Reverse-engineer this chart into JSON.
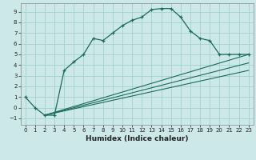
{
  "xlabel": "Humidex (Indice chaleur)",
  "bg_color": "#cce8e8",
  "grid_color": "#99cccc",
  "line_color": "#1a6b5a",
  "xlim": [
    -0.5,
    23.5
  ],
  "ylim": [
    -1.6,
    9.8
  ],
  "xticks": [
    0,
    1,
    2,
    3,
    4,
    5,
    6,
    7,
    8,
    9,
    10,
    11,
    12,
    13,
    14,
    15,
    16,
    17,
    18,
    19,
    20,
    21,
    22,
    23
  ],
  "yticks": [
    -1,
    0,
    1,
    2,
    3,
    4,
    5,
    6,
    7,
    8,
    9
  ],
  "main_x": [
    0,
    1,
    2,
    3,
    4,
    5,
    6,
    7,
    8,
    9,
    10,
    11,
    12,
    13,
    14,
    15,
    16,
    17,
    18,
    19,
    20,
    21,
    22,
    23
  ],
  "main_y": [
    1.0,
    0.0,
    -0.7,
    -0.7,
    3.5,
    4.3,
    5.0,
    6.5,
    6.3,
    7.0,
    7.7,
    8.2,
    8.5,
    9.2,
    9.3,
    9.3,
    8.5,
    7.2,
    6.5,
    6.3,
    5.0,
    5.0,
    5.0,
    5.0
  ],
  "line1_x": [
    2,
    23
  ],
  "line1_y": [
    -0.7,
    5.0
  ],
  "line2_x": [
    2,
    23
  ],
  "line2_y": [
    -0.7,
    4.2
  ],
  "line3_x": [
    2,
    23
  ],
  "line3_y": [
    -0.7,
    3.5
  ]
}
